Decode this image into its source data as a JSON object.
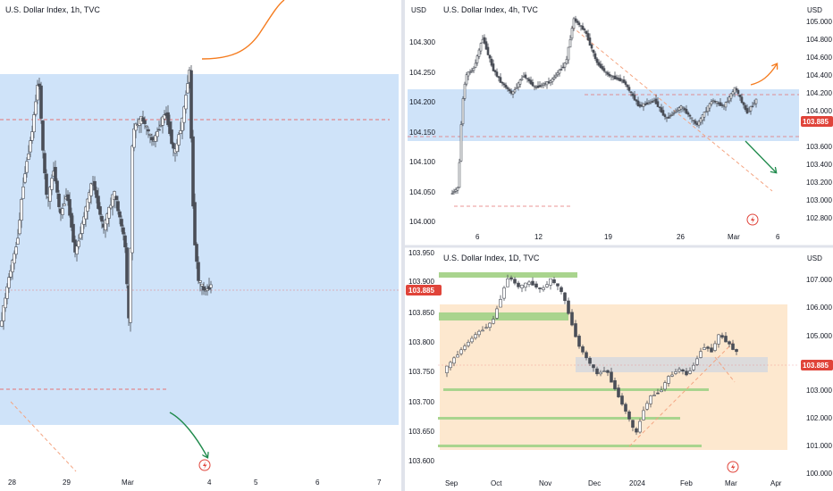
{
  "colors": {
    "up": "#26a69a",
    "down": "#ef5350",
    "candle_ink": "#4a4e57",
    "blue_zone": "#cfe3f9",
    "orange_zone": "#fde8cf",
    "green_zone": "#a9d48e",
    "gray_zone": "#d3d7de",
    "price_label": "#e0443a",
    "arrow_orange": "#f57c1f",
    "arrow_green": "#1f8a4c",
    "grid": "#eef0f3",
    "divider": "#e0e3eb"
  },
  "icons": [
    "lightning-icon"
  ],
  "chart_data": [
    {
      "type": "candlestick",
      "title": "U.S. Dollar Index, 1h, TVC",
      "currency": "",
      "y_ticks": [
        "103.950",
        "103.900",
        "103.850",
        "103.800",
        "103.750",
        "103.700",
        "103.650",
        "103.600"
      ],
      "ylim": [
        103.585,
        103.965
      ],
      "x_ticks": [
        "28",
        "29",
        "Mar",
        "4",
        "5",
        "6",
        "7"
      ],
      "last_price": "103.885",
      "last_value": 103.885,
      "zone": [
        103.663,
        103.848
      ],
      "levels": [
        103.885,
        103.72
      ],
      "series": [
        {
          "x": 0.0,
          "y": 103.7
        },
        {
          "x": 0.2,
          "y": 103.74
        },
        {
          "x": 0.4,
          "y": 103.77
        },
        {
          "x": 0.55,
          "y": 103.82
        },
        {
          "x": 0.75,
          "y": 103.86
        },
        {
          "x": 0.9,
          "y": 103.905
        },
        {
          "x": 1.0,
          "y": 103.84
        },
        {
          "x": 1.1,
          "y": 103.8
        },
        {
          "x": 1.25,
          "y": 103.83
        },
        {
          "x": 1.4,
          "y": 103.79
        },
        {
          "x": 1.55,
          "y": 103.81
        },
        {
          "x": 1.75,
          "y": 103.76
        },
        {
          "x": 1.95,
          "y": 103.79
        },
        {
          "x": 2.15,
          "y": 103.82
        },
        {
          "x": 2.4,
          "y": 103.78
        },
        {
          "x": 2.65,
          "y": 103.81
        },
        {
          "x": 2.9,
          "y": 103.77
        },
        {
          "x": 3.0,
          "y": 103.7
        },
        {
          "x": 3.08,
          "y": 103.86
        },
        {
          "x": 3.3,
          "y": 103.87
        },
        {
          "x": 3.55,
          "y": 103.85
        },
        {
          "x": 3.85,
          "y": 103.875
        },
        {
          "x": 4.05,
          "y": 103.84
        },
        {
          "x": 4.25,
          "y": 103.87
        },
        {
          "x": 4.4,
          "y": 103.91
        },
        {
          "x": 4.5,
          "y": 103.78
        },
        {
          "x": 4.6,
          "y": 103.74
        },
        {
          "x": 4.75,
          "y": 103.73
        },
        {
          "x": 4.9,
          "y": 103.735
        }
      ]
    },
    {
      "type": "candlestick",
      "title": "U.S. Dollar Index, 4h, TVC",
      "currency": "USD",
      "y_ticks": [
        "104.300",
        "104.250",
        "104.200",
        "104.150",
        "104.100",
        "104.050",
        "104.000"
      ],
      "ylim": [
        103.975,
        104.34
      ],
      "x_ticks": [
        "6",
        "12",
        "19",
        "26",
        "Mar",
        "6"
      ],
      "right_ticks": [
        "105.000",
        "104.800",
        "104.600",
        "104.400",
        "104.200",
        "104.000",
        "103.800",
        "103.600",
        "103.400",
        "103.200",
        "103.000",
        "102.800"
      ],
      "last_price": "103.885",
      "last_value": 103.885,
      "zone": [
        103.69,
        104.22
      ],
      "levels": [
        104.155,
        103.02
      ],
      "series": [
        {
          "x": 0.0,
          "y": 104.03
        },
        {
          "x": 0.1,
          "y": 104.04
        },
        {
          "x": 0.15,
          "y": 104.17
        },
        {
          "x": 0.2,
          "y": 104.22
        },
        {
          "x": 0.3,
          "y": 104.23
        },
        {
          "x": 0.42,
          "y": 104.28
        },
        {
          "x": 0.55,
          "y": 104.23
        },
        {
          "x": 0.65,
          "y": 104.21
        },
        {
          "x": 0.8,
          "y": 104.19
        },
        {
          "x": 0.95,
          "y": 104.22
        },
        {
          "x": 1.1,
          "y": 104.2
        },
        {
          "x": 1.3,
          "y": 104.21
        },
        {
          "x": 1.5,
          "y": 104.24
        },
        {
          "x": 1.6,
          "y": 104.31
        },
        {
          "x": 1.75,
          "y": 104.29
        },
        {
          "x": 1.9,
          "y": 104.24
        },
        {
          "x": 2.05,
          "y": 104.22
        },
        {
          "x": 2.25,
          "y": 104.21
        },
        {
          "x": 2.45,
          "y": 104.17
        },
        {
          "x": 2.65,
          "y": 104.18
        },
        {
          "x": 2.8,
          "y": 104.15
        },
        {
          "x": 3.0,
          "y": 104.17
        },
        {
          "x": 3.2,
          "y": 104.14
        },
        {
          "x": 3.4,
          "y": 104.18
        },
        {
          "x": 3.55,
          "y": 104.17
        },
        {
          "x": 3.7,
          "y": 104.2
        },
        {
          "x": 3.85,
          "y": 104.16
        },
        {
          "x": 3.97,
          "y": 104.18
        }
      ]
    },
    {
      "type": "candlestick",
      "title": "U.S. Dollar Index, 1D, TVC",
      "currency": "USD",
      "y_ticks": [
        "107.000",
        "106.000",
        "105.000",
        "104.000",
        "103.000",
        "102.000",
        "101.000",
        "100.000"
      ],
      "ylim": [
        99.8,
        107.5
      ],
      "x_ticks": [
        "Sep",
        "Oct",
        "Nov",
        "Dec",
        "2024",
        "Feb",
        "Mar",
        "Apr"
      ],
      "last_price": "103.885",
      "last_value": 103.885,
      "zones": {
        "orange": [
          100.9,
          106.05
        ],
        "gray": [
          103.75,
          104.35
        ],
        "green_top": [
          106.9,
          107.2
        ],
        "green_mid": [
          105.3,
          105.75
        ]
      },
      "levels": [
        103.1,
        102.0,
        100.95
      ],
      "series": [
        {
          "x": 0.0,
          "y": 103.3
        },
        {
          "x": 0.3,
          "y": 104.0
        },
        {
          "x": 0.6,
          "y": 104.6
        },
        {
          "x": 0.9,
          "y": 105.0
        },
        {
          "x": 1.05,
          "y": 105.8
        },
        {
          "x": 1.2,
          "y": 106.6
        },
        {
          "x": 1.4,
          "y": 106.2
        },
        {
          "x": 1.6,
          "y": 106.4
        },
        {
          "x": 1.8,
          "y": 106.1
        },
        {
          "x": 2.0,
          "y": 106.5
        },
        {
          "x": 2.2,
          "y": 106.0
        },
        {
          "x": 2.35,
          "y": 105.1
        },
        {
          "x": 2.5,
          "y": 104.2
        },
        {
          "x": 2.7,
          "y": 103.6
        },
        {
          "x": 2.85,
          "y": 103.2
        },
        {
          "x": 3.0,
          "y": 103.4
        },
        {
          "x": 3.15,
          "y": 102.8
        },
        {
          "x": 3.3,
          "y": 102.2
        },
        {
          "x": 3.45,
          "y": 101.6
        },
        {
          "x": 3.55,
          "y": 101.1
        },
        {
          "x": 3.7,
          "y": 102.0
        },
        {
          "x": 3.85,
          "y": 102.5
        },
        {
          "x": 4.0,
          "y": 102.6
        },
        {
          "x": 4.15,
          "y": 103.1
        },
        {
          "x": 4.35,
          "y": 103.4
        },
        {
          "x": 4.5,
          "y": 103.2
        },
        {
          "x": 4.65,
          "y": 103.6
        },
        {
          "x": 4.8,
          "y": 104.2
        },
        {
          "x": 4.95,
          "y": 104.0
        },
        {
          "x": 5.1,
          "y": 104.6
        },
        {
          "x": 5.25,
          "y": 104.3
        },
        {
          "x": 5.45,
          "y": 103.9
        }
      ]
    }
  ]
}
